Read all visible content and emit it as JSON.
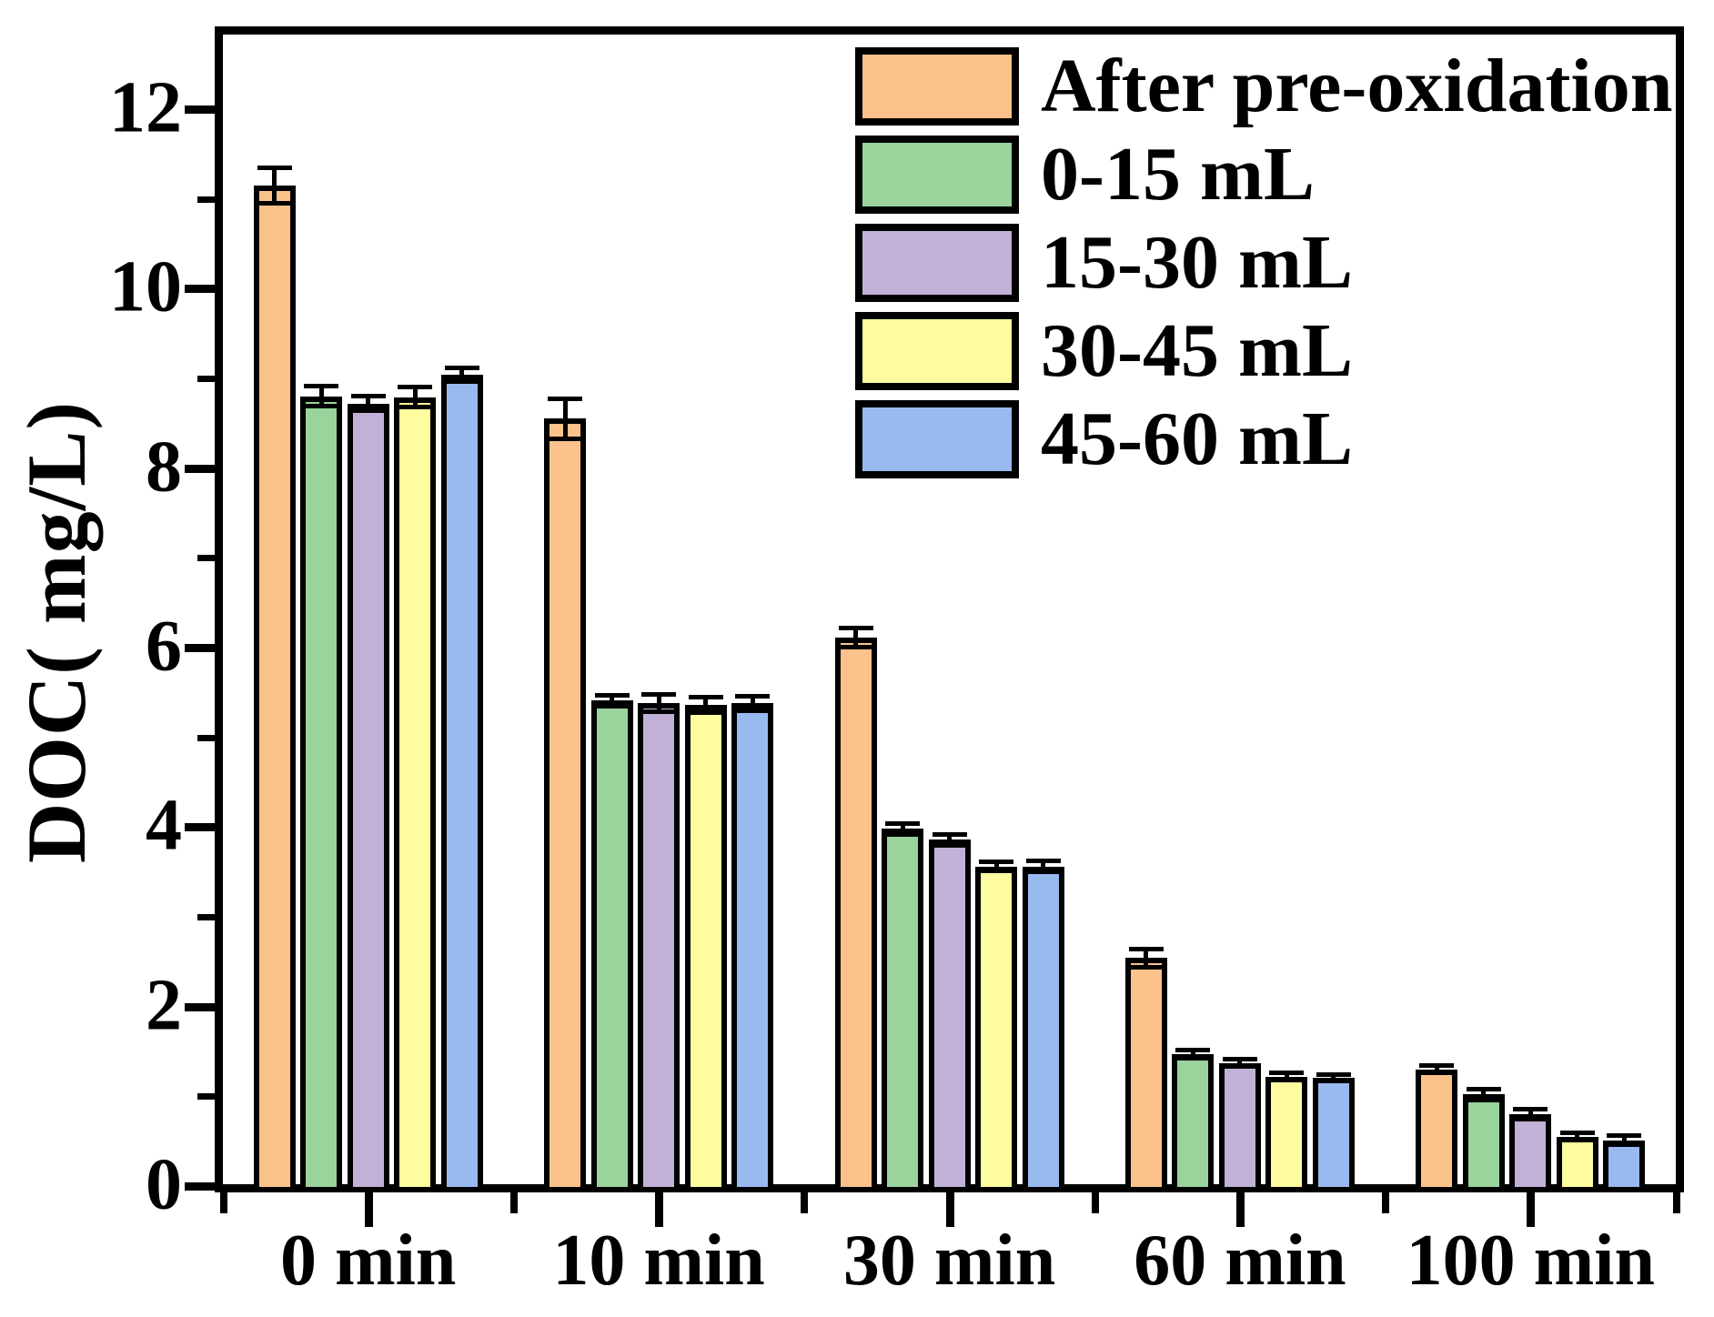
{
  "chart_data": {
    "type": "bar",
    "title": "",
    "xlabel": "",
    "ylabel": "DOC( mg/L)",
    "categories": [
      "0 min",
      "10 min",
      "30 min",
      "60 min",
      "100 min"
    ],
    "series": [
      {
        "name": "After pre-oxidation",
        "color": "#FBC28C",
        "values": [
          11.15,
          8.55,
          6.11,
          2.54,
          1.3
        ],
        "errors": [
          0.2,
          0.22,
          0.11,
          0.1,
          0.04
        ]
      },
      {
        "name": "0-15 mL",
        "color": "#9AD39B",
        "values": [
          8.8,
          5.41,
          3.98,
          1.47,
          1.02
        ],
        "errors": [
          0.11,
          0.06,
          0.06,
          0.05,
          0.06
        ]
      },
      {
        "name": "15-30 mL",
        "color": "#C2B1D6",
        "values": [
          8.72,
          5.38,
          3.86,
          1.37,
          0.8
        ],
        "errors": [
          0.08,
          0.1,
          0.06,
          0.04,
          0.06
        ]
      },
      {
        "name": "30-45 mL",
        "color": "#FEFC9E",
        "values": [
          8.79,
          5.36,
          3.56,
          1.22,
          0.55
        ],
        "errors": [
          0.11,
          0.09,
          0.05,
          0.04,
          0.04
        ]
      },
      {
        "name": "45-60 mL",
        "color": "#99B9F1",
        "values": [
          9.04,
          5.38,
          3.56,
          1.21,
          0.51
        ],
        "errors": [
          0.08,
          0.08,
          0.06,
          0.03,
          0.05
        ]
      }
    ],
    "ylim": [
      0,
      12.83
    ],
    "yticks": [
      0,
      2,
      4,
      6,
      8,
      10,
      12
    ],
    "yticks_minor": [
      1,
      3,
      5,
      7,
      9,
      11
    ],
    "grid": false,
    "legend_position": "top-right",
    "bar_outline_color": "#000000",
    "background_color": "#FFFFFF"
  }
}
